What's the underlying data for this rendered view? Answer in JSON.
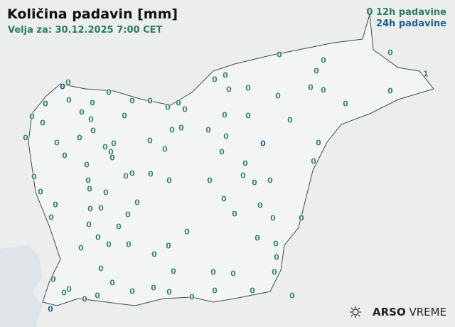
{
  "header": {
    "title": "Količina padavin [mm]",
    "valid": "Velja za: 30.12.2025 7:00 CET"
  },
  "legend": {
    "sample": "0",
    "label_12h": "12h padavine",
    "label_24h": "24h padavine",
    "color_12h": "#3a8a68",
    "color_24h": "#1f5f8f"
  },
  "logo": {
    "brand": "ARSO",
    "product": "VREME",
    "icon": "sun-cloud-icon"
  },
  "stations_12h": [
    "0",
    "0",
    "0",
    "0",
    "0",
    "0",
    "0",
    "0",
    "0",
    "0",
    "0",
    "0",
    "0",
    "0",
    "0",
    "0",
    "0",
    "0",
    "0",
    "0",
    "0",
    "0",
    "0",
    "0",
    "0",
    "0",
    "0",
    "0",
    "0",
    "0",
    "0",
    "0",
    "0",
    "0",
    "0",
    "0",
    "0",
    "0",
    "0",
    "0",
    "0",
    "0",
    "0",
    "0",
    "0",
    "0",
    "0",
    "0",
    "0",
    "0",
    "0",
    "0",
    "0",
    "0",
    "0",
    "0",
    "0",
    "0",
    "0",
    "0",
    "0",
    "0",
    "0",
    "0",
    "0",
    "0",
    "0",
    "0",
    "0",
    "0",
    "0",
    "0",
    "0",
    "0",
    "0",
    "0",
    "0",
    "0",
    "0",
    "0",
    "0",
    "0",
    "0",
    "0",
    "0",
    "0",
    "0",
    "0",
    "0",
    "0",
    "0",
    "0",
    "0",
    "0",
    "0",
    "0",
    "0",
    "0",
    "0",
    "0",
    "0",
    "0",
    "0",
    "0",
    "0",
    "1"
  ],
  "stations_24h": [
    "0",
    "0",
    "0"
  ]
}
